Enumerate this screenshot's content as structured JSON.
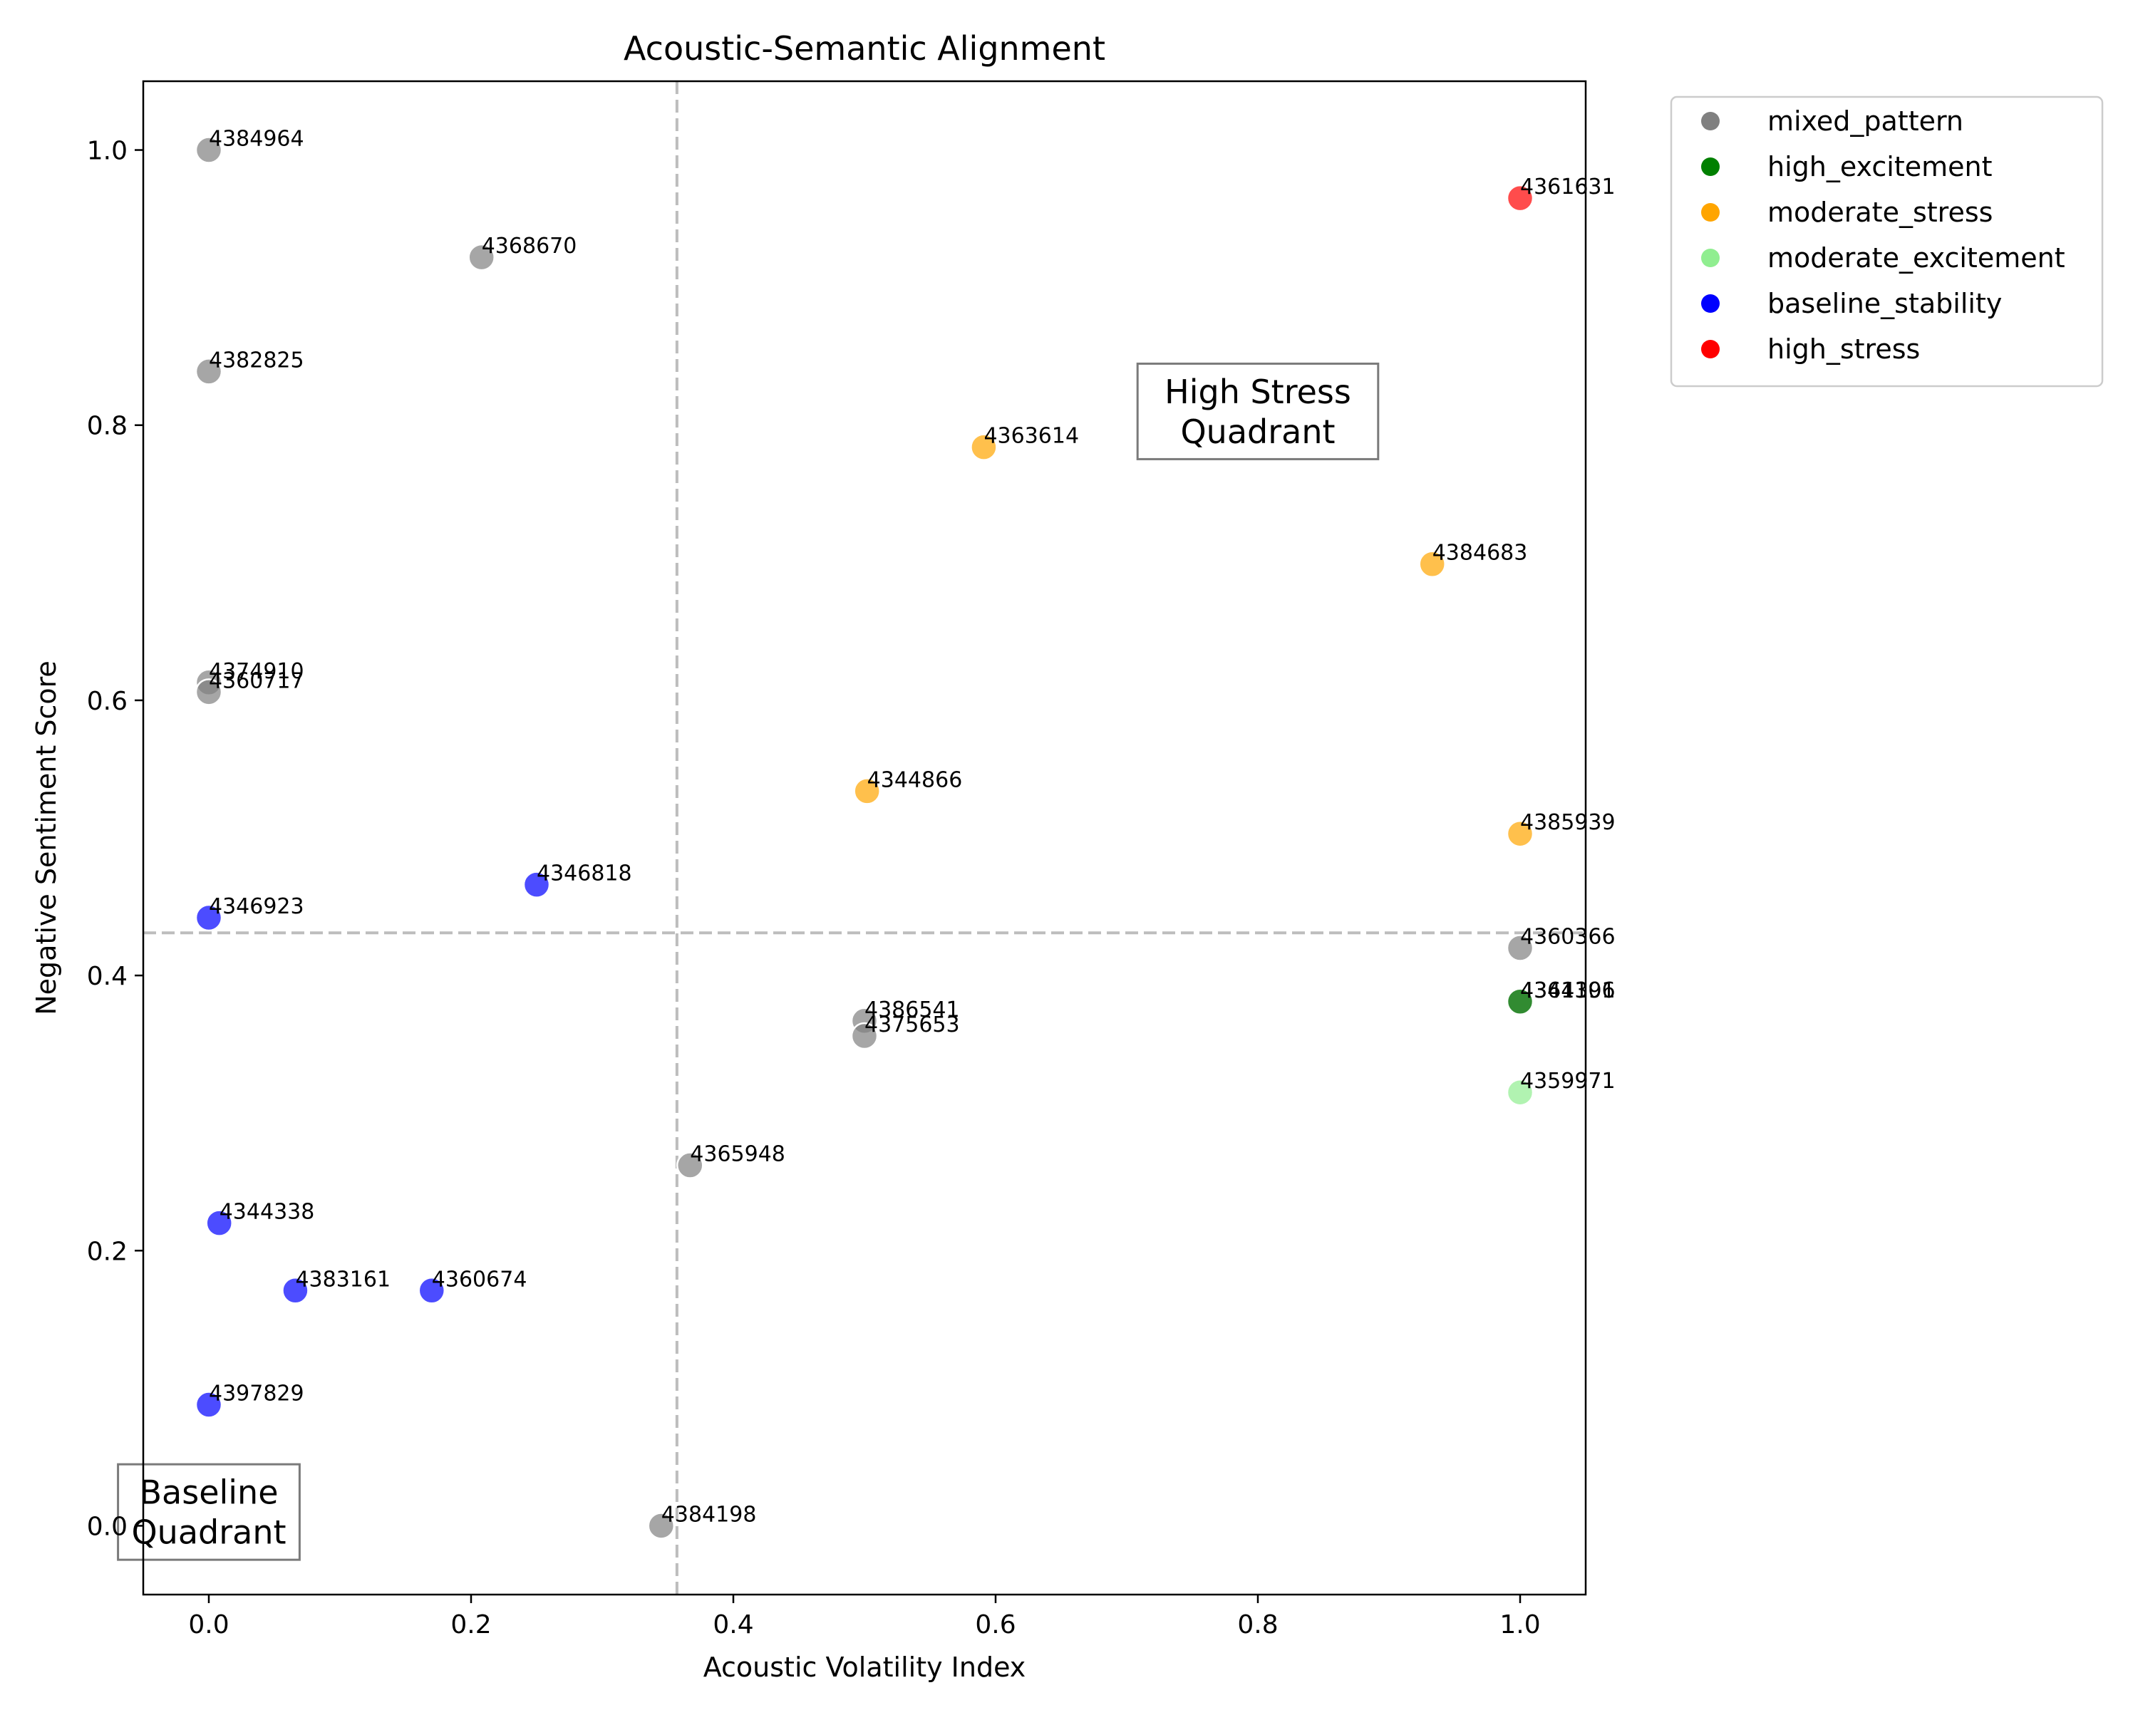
{
  "chart_data": {
    "type": "scatter",
    "title": "Acoustic-Semantic Alignment",
    "xlabel": "Acoustic Volatility Index",
    "ylabel": "Negative Sentiment Score",
    "xlim": [
      -0.05,
      1.05
    ],
    "ylim": [
      -0.05,
      1.05
    ],
    "xticks": [
      "0.0",
      "0.2",
      "0.4",
      "0.6",
      "0.8",
      "1.0"
    ],
    "yticks": [
      "0.0",
      "0.2",
      "0.4",
      "0.6",
      "0.8",
      "1.0"
    ],
    "grid": false,
    "legend_placement": "outside top-right",
    "reference_lines": {
      "vertical_x": 0.357,
      "horizontal_y": 0.431
    },
    "annotations": [
      {
        "text": "High Stress\nQuadrant",
        "x": 0.8,
        "y": 0.81
      },
      {
        "text": "Baseline\nQuadrant",
        "x": 0.0,
        "y": 0.01
      }
    ],
    "series": [
      {
        "name": "mixed_pattern",
        "color": "#808080",
        "points": [
          {
            "id": "4384964",
            "x": 0.0,
            "y": 1.0
          },
          {
            "id": "4368670",
            "x": 0.208,
            "y": 0.922
          },
          {
            "id": "4382825",
            "x": 0.0,
            "y": 0.839
          },
          {
            "id": "4374910",
            "x": 0.0,
            "y": 0.613
          },
          {
            "id": "4360717",
            "x": 0.0,
            "y": 0.606
          },
          {
            "id": "4360366",
            "x": 1.0,
            "y": 0.42
          },
          {
            "id": "4341101",
            "x": 1.0,
            "y": 0.381
          },
          {
            "id": "4386541",
            "x": 0.5,
            "y": 0.367
          },
          {
            "id": "4375653",
            "x": 0.5,
            "y": 0.356
          },
          {
            "id": "4365948",
            "x": 0.367,
            "y": 0.262
          },
          {
            "id": "4384198",
            "x": 0.345,
            "y": 0.0
          }
        ]
      },
      {
        "name": "high_excitement",
        "color": "#008000",
        "points": [
          {
            "id": "4364396",
            "x": 1.0,
            "y": 0.381
          }
        ]
      },
      {
        "name": "moderate_stress",
        "color": "#ffa500",
        "points": [
          {
            "id": "4363614",
            "x": 0.591,
            "y": 0.784
          },
          {
            "id": "4384683",
            "x": 0.933,
            "y": 0.699
          },
          {
            "id": "4344866",
            "x": 0.502,
            "y": 0.534
          },
          {
            "id": "4385939",
            "x": 1.0,
            "y": 0.503
          }
        ]
      },
      {
        "name": "moderate_excitement",
        "color": "#90ee90",
        "points": [
          {
            "id": "4359971",
            "x": 1.0,
            "y": 0.315
          }
        ]
      },
      {
        "name": "baseline_stability",
        "color": "#0000ff",
        "points": [
          {
            "id": "4346818",
            "x": 0.25,
            "y": 0.466
          },
          {
            "id": "4346923",
            "x": 0.0,
            "y": 0.442
          },
          {
            "id": "4344338",
            "x": 0.008,
            "y": 0.22
          },
          {
            "id": "4383161",
            "x": 0.066,
            "y": 0.171
          },
          {
            "id": "4360674",
            "x": 0.17,
            "y": 0.171
          },
          {
            "id": "4397829",
            "x": 0.0,
            "y": 0.088
          }
        ]
      },
      {
        "name": "high_stress",
        "color": "#ff0000",
        "points": [
          {
            "id": "4361631",
            "x": 1.0,
            "y": 0.965
          }
        ]
      }
    ]
  }
}
